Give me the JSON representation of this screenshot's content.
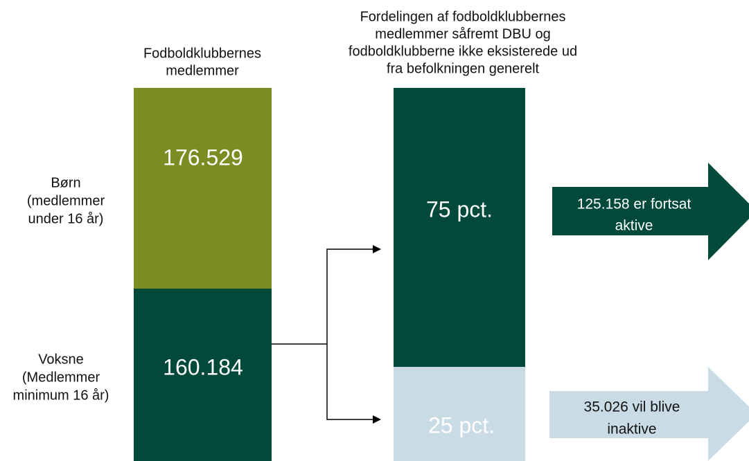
{
  "left_column": {
    "header": [
      "Fodboldklubbernes",
      "medlemmer"
    ],
    "segments": [
      {
        "label": [
          "Børn",
          "(medlemmer",
          "under 16 år)"
        ],
        "value": "176.529"
      },
      {
        "label": [
          "Voksne",
          "(Medlemmer",
          "minimum 16 år)"
        ],
        "value": "160.184"
      }
    ]
  },
  "right_column": {
    "header": [
      "Fordelingen af fodboldklubbernes",
      "medlemmer såfremt DBU og",
      "fodboldklubberne ikke eksisterede ud",
      "fra befolkningen generelt"
    ],
    "segments": [
      {
        "value": "75 pct."
      },
      {
        "value": "25 pct."
      }
    ]
  },
  "outcomes": [
    {
      "text": [
        "125.158 er fortsat",
        "aktive"
      ]
    },
    {
      "text": [
        "35.026 vil blive",
        "inaktive"
      ]
    }
  ]
}
